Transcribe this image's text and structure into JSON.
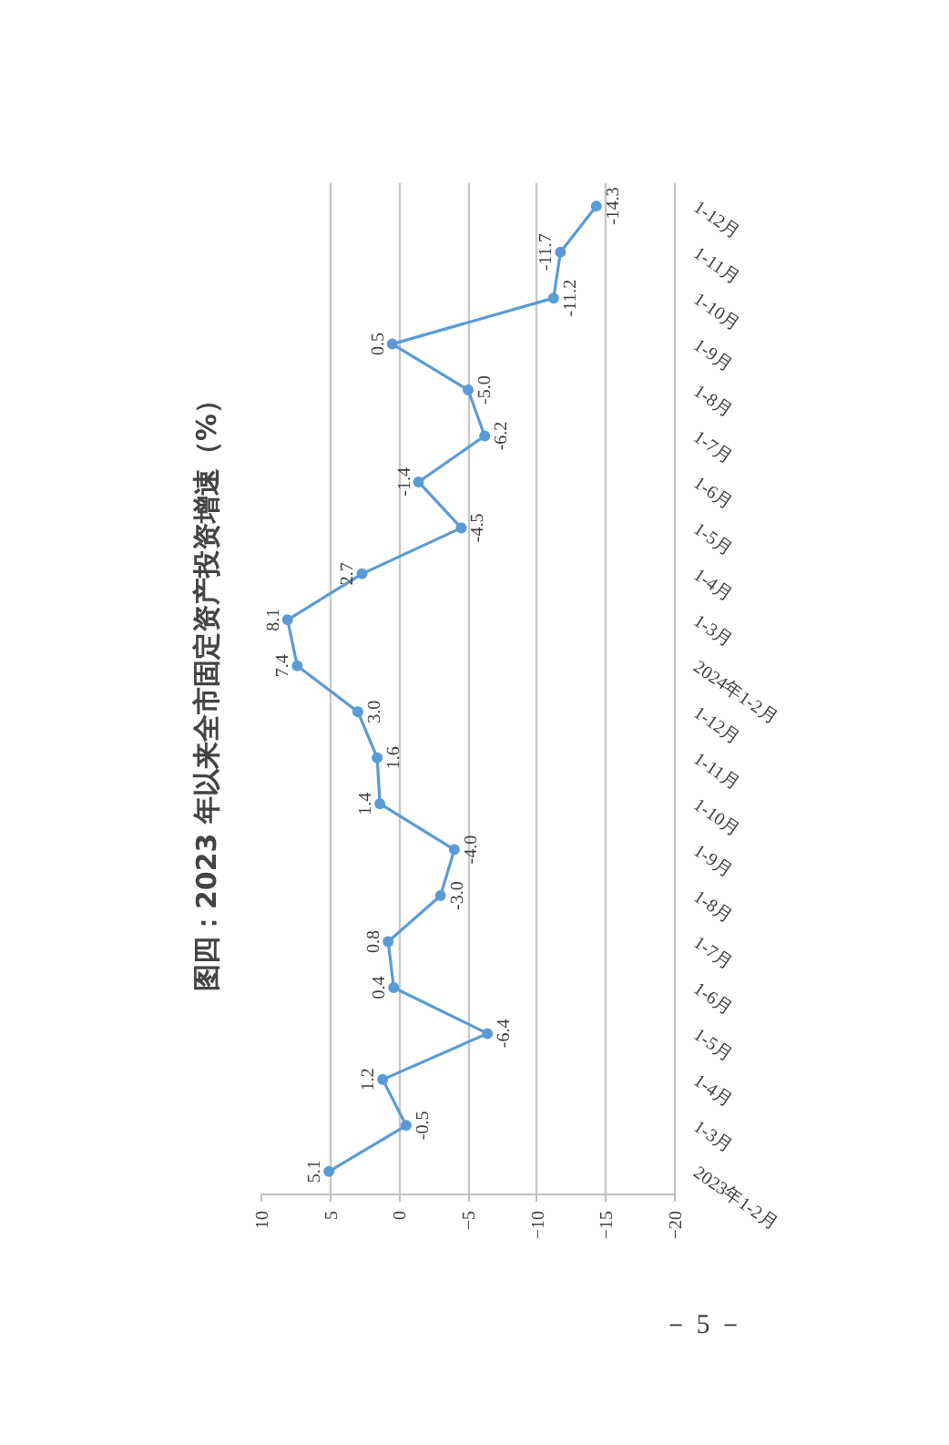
{
  "chart_data": {
    "type": "line",
    "orientation": "horizontal",
    "title": "图四：2023 年以来全市固定资产投资增速（%）",
    "categories": [
      "1-12月",
      "1-11月",
      "1-10月",
      "1-9月",
      "1-8月",
      "1-7月",
      "1-6月",
      "1-5月",
      "1-4月",
      "1-3月",
      "2024年1-2月",
      "1-12月",
      "1-11月",
      "1-10月",
      "1-9月",
      "1-8月",
      "1-7月",
      "1-6月",
      "1-5月",
      "1-4月",
      "1-3月",
      "2023年1-2月"
    ],
    "values": [
      -14.3,
      -11.7,
      -11.2,
      0.5,
      -5.0,
      -6.2,
      -1.4,
      -4.5,
      2.7,
      8.1,
      7.4,
      3.0,
      1.6,
      1.4,
      -4.0,
      -3.0,
      0.8,
      0.4,
      -6.4,
      1.2,
      -0.5,
      5.1
    ],
    "value_labels": [
      "-14.3",
      "-11.7",
      "-11.2",
      "0.5",
      "-5.0",
      "-6.2",
      "-1.4",
      "-4.5",
      "2.7",
      "8.1",
      "7.4",
      "3.0",
      "1.6",
      "1.4",
      "-4.0",
      "-3.0",
      "0.8",
      "0.4",
      "-6.4",
      "1.2",
      "-0.5",
      "5.1"
    ],
    "color": "#5b9bd5",
    "xlim": [
      10,
      -20
    ],
    "xticks": [
      10,
      5,
      0,
      -5,
      -10,
      -15,
      -20
    ],
    "grid": "x",
    "marker": "circle",
    "annotations": [
      "－ 5 －"
    ]
  }
}
